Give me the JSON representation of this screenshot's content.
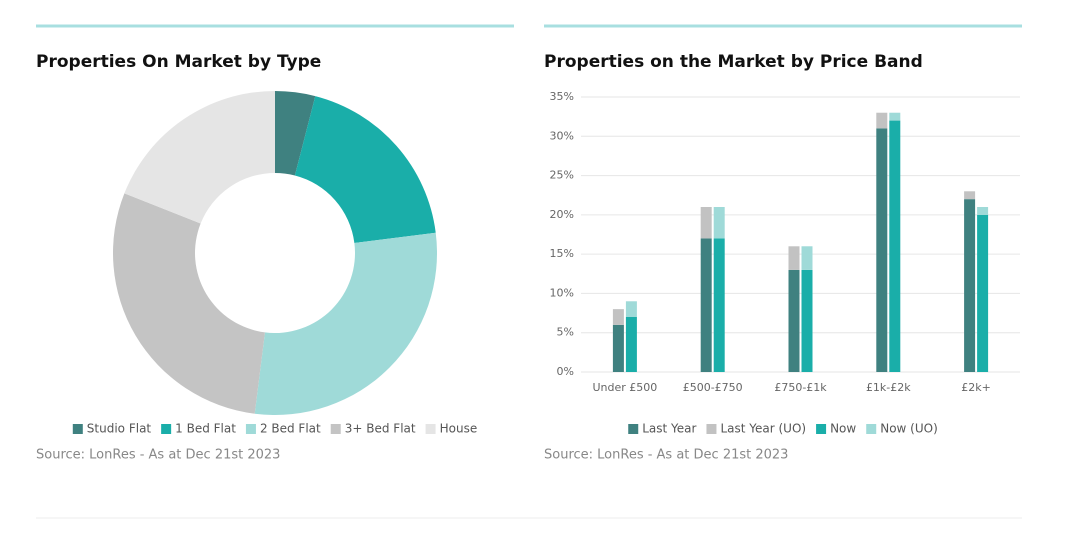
{
  "chart_data": [
    {
      "type": "pie",
      "title": "Properties On Market by Type",
      "categories": [
        "Studio Flat",
        "1 Bed Flat",
        "2 Bed Flat",
        "3+ Bed Flat",
        "House"
      ],
      "values": [
        4,
        19,
        29,
        29,
        19
      ],
      "colors": [
        "#3f8180",
        "#1aaea9",
        "#9fdad8",
        "#c4c4c4",
        "#e5e5e5"
      ],
      "source": "Source: LonRes - As at Dec 21st 2023"
    },
    {
      "type": "bar",
      "title": "Properties on the Market by Price Band",
      "categories": [
        "Under £500",
        "£500-£750",
        "£750-£1k",
        "£1k-£2k",
        "£2k+"
      ],
      "series": [
        {
          "name": "Last Year",
          "color": "#3f8180",
          "values": [
            6,
            17,
            13,
            31,
            22
          ]
        },
        {
          "name": "Last Year (UO)",
          "color": "#c2c2c2",
          "values": [
            2,
            4,
            3,
            2,
            1
          ]
        },
        {
          "name": "Now",
          "color": "#1aaea9",
          "values": [
            7,
            17,
            13,
            32,
            20
          ]
        },
        {
          "name": "Now (UO)",
          "color": "#9fdad8",
          "values": [
            2,
            4,
            3,
            1,
            1
          ]
        }
      ],
      "ylim": [
        0,
        35
      ],
      "yticks": [
        {
          "value": 0,
          "label": "0%"
        },
        {
          "value": 5,
          "label": "5%"
        },
        {
          "value": 10,
          "label": "10%"
        },
        {
          "value": 15,
          "label": "15%"
        },
        {
          "value": 20,
          "label": "20%"
        },
        {
          "value": 25,
          "label": "25%"
        },
        {
          "value": 30,
          "label": "30%"
        },
        {
          "value": 35,
          "label": "35%"
        }
      ],
      "grid": true,
      "source": "Source: LonRes - As at Dec 21st 2023"
    }
  ]
}
